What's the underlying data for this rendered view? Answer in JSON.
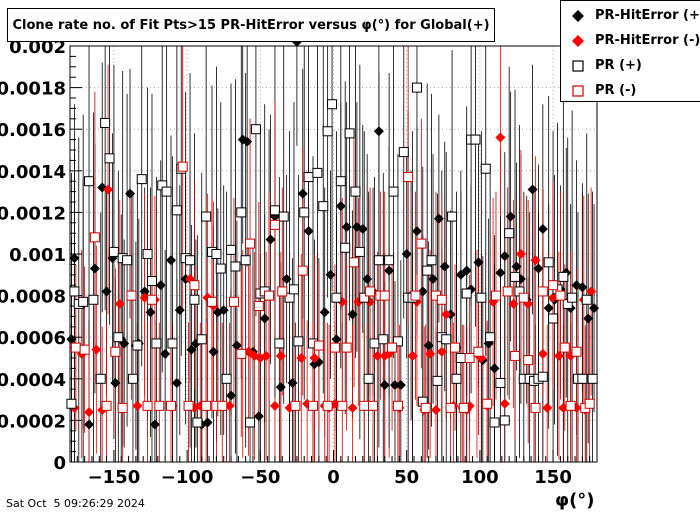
{
  "title": "Clone rate no. of Fit Pts>15 PR-HitError versus φ(°) for Global(+)",
  "footer": "Sat Oct  5 09:26:29 2024",
  "chart_data": {
    "type": "scatter",
    "title": "Clone rate no. of Fit Pts>15 PR-HitError versus φ(°) for Global(+)",
    "xlabel": "φ(°)",
    "ylabel": "",
    "xlim": [
      -180,
      180
    ],
    "ylim": [
      0,
      0.002
    ],
    "grid": true,
    "legend_position": "top-right",
    "x_ticks": [
      -150,
      -100,
      -50,
      0,
      50,
      100,
      150
    ],
    "x_tick_labels": [
      "−150",
      "−100",
      "−50",
      "0",
      "50",
      "100",
      "150"
    ],
    "y_ticks": [
      0,
      0.0002,
      0.0004,
      0.0006,
      0.0008,
      0.001,
      0.0012,
      0.0014,
      0.0016,
      0.0018,
      0.002
    ],
    "y_tick_labels": [
      "0",
      "0.0002",
      "0.0004",
      "0.0006",
      "0.0008",
      "0.001",
      "0.0012",
      "0.0014",
      "0.0016",
      "0.0018",
      "0.002"
    ],
    "series": [
      {
        "name": "PR-HitError (+)",
        "color": "#000000",
        "marker": "filled-diamond",
        "x": [
          -179,
          -177,
          -171,
          -167,
          -163,
          -158,
          -155,
          -151,
          -149,
          -145,
          -143,
          -139,
          -135,
          -133,
          -129,
          -125,
          -122,
          -118,
          -115,
          -111,
          -107,
          -105,
          -101,
          -97,
          -94,
          -90,
          -86,
          -82,
          -79,
          -75,
          -70,
          -66,
          -62,
          -59,
          -55,
          -51,
          -47,
          -43,
          -40,
          -36,
          -32,
          -28,
          -25,
          -21,
          -17,
          -13,
          -10,
          -6,
          -2,
          2,
          5,
          9,
          13,
          16,
          20,
          23,
          27,
          31,
          35,
          38,
          42,
          46,
          50,
          53,
          57,
          61,
          65,
          68,
          72,
          76,
          80,
          84,
          87,
          91,
          94,
          99,
          102,
          106,
          110,
          114,
          117,
          121,
          125,
          128,
          132,
          136,
          140,
          143,
          147,
          151,
          155,
          159,
          162,
          166,
          170,
          174,
          178
        ],
        "y": [
          0.00059,
          0.00098,
          0.00076,
          0.00018,
          0.00093,
          0.00132,
          0.00082,
          0.00098,
          0.00038,
          0.00059,
          0.00057,
          0.00129,
          0.00056,
          0.00057,
          0.00082,
          0.00072,
          0.00018,
          0.00085,
          0.00052,
          0.00097,
          0.00038,
          0.00073,
          0.00088,
          0.00054,
          0.00057,
          0.00018,
          0.00019,
          0.00053,
          0.00072,
          0.00073,
          0.00032,
          0.00056,
          0.00155,
          0.00154,
          0.00053,
          0.00022,
          0.00069,
          0.00107,
          0.00118,
          0.00036,
          0.00088,
          0.00038,
          0.00202,
          0.00129,
          0.00111,
          0.00047,
          0.00048,
          0.00072,
          0.0009,
          0.00059,
          0.00123,
          0.00113,
          0.00071,
          0.00113,
          0.00112,
          0.00088,
          0.00082,
          0.00159,
          0.00037,
          0.00092,
          0.00037,
          0.00037,
          0.001,
          0.0008,
          0.00111,
          0.00082,
          0.00056,
          0.00088,
          0.00117,
          0.00094,
          0.00071,
          0.00055,
          0.0009,
          0.00092,
          0.00083,
          0.00096,
          0.00049,
          0.00057,
          0.00045,
          0.00091,
          0.00099,
          0.00118,
          0.00094,
          0.00088,
          0.00078,
          0.00131,
          0.00093,
          0.00112,
          0.00074,
          0.00078,
          0.00083,
          0.00091,
          0.00074,
          0.00085,
          0.00084,
          0.00069,
          0.00074
        ],
        "yerr": [
          0.0008,
          0.0005,
          0.0006,
          0.0005,
          0.0006,
          0.0006,
          0.0005,
          0.0006,
          0.0005,
          0.0006,
          0.0005,
          0.0006,
          0.0005,
          0.0006,
          0.0005,
          0.0006,
          0.0005,
          0.0006,
          0.0005,
          0.0006,
          0.0005,
          0.0006,
          0.0005,
          0.0006,
          0.0005,
          0.0006,
          0.0005,
          0.0006,
          0.0005,
          0.0006,
          0.0005,
          0.0006,
          0.0005,
          0.0006,
          0.0005,
          0.0006,
          0.0005,
          0.0006,
          0.0005,
          0.0006,
          0.0005,
          0.0006,
          0.0005,
          0.0006,
          0.0005,
          0.0006,
          0.0005,
          0.0006,
          0.0005,
          0.0006,
          0.0005,
          0.0006,
          0.0005,
          0.0006,
          0.0005,
          0.0006,
          0.0005,
          0.0006,
          0.0005,
          0.0006,
          0.0005,
          0.0006,
          0.0005,
          0.0006,
          0.0005,
          0.0006,
          0.0005,
          0.0006,
          0.0005,
          0.0006,
          0.0005,
          0.0006,
          0.0005,
          0.0006,
          0.0005,
          0.0006,
          0.0005,
          0.0006,
          0.0005,
          0.0006,
          0.0005,
          0.0006,
          0.0005,
          0.0006,
          0.0005,
          0.0006,
          0.0005,
          0.0006,
          0.0005,
          0.0006,
          0.0005,
          0.0006,
          0.0005,
          0.0006,
          0.0005,
          0.0006,
          0.0005
        ]
      },
      {
        "name": "PR-HitError (-)",
        "color": "#ff0000",
        "marker": "filled-diamond",
        "x": [
          -177,
          -172,
          -167,
          -162,
          -158,
          -154,
          -146,
          -134,
          -129,
          -122,
          -110,
          -98,
          -95,
          -91,
          -86,
          -82,
          -71,
          -62,
          -58,
          -54,
          -50,
          -46,
          -40,
          -36,
          -30,
          -26,
          -22,
          -18,
          -13,
          -6,
          -3,
          1,
          6,
          13,
          17,
          25,
          30,
          35,
          38,
          45,
          54,
          57,
          62,
          66,
          70,
          74,
          77,
          82,
          88,
          91,
          93,
          98,
          101,
          105,
          109,
          114,
          117,
          123,
          128,
          133,
          138,
          143,
          146,
          150,
          154,
          157,
          162,
          166,
          171,
          172,
          176
        ],
        "y": [
          0.00026,
          0.00052,
          0.00024,
          0.00054,
          0.00025,
          0.00131,
          0.00076,
          0.00027,
          0.00079,
          0.00078,
          0.00027,
          0.00088,
          0.00026,
          0.00027,
          0.00079,
          0.00075,
          0.00027,
          0.00052,
          0.00053,
          0.00051,
          0.0005,
          0.00051,
          0.00027,
          0.00051,
          0.00026,
          0.00027,
          0.0005,
          0.00028,
          0.0005,
          0.00027,
          0.00026,
          0.00028,
          0.00077,
          0.00026,
          0.00077,
          0.00077,
          0.00051,
          0.00051,
          0.00052,
          0.00026,
          0.00051,
          0.00077,
          0.00025,
          0.00052,
          0.00025,
          0.00053,
          0.00071,
          0.00027,
          0.00026,
          0.00025,
          0.00027,
          0.00052,
          0.0005,
          0.00027,
          0.00077,
          0.00156,
          0.00028,
          0.00076,
          0.001,
          0.00076,
          0.00097,
          0.00052,
          0.00026,
          0.00079,
          0.00051,
          0.00026,
          0.00051,
          0.00026,
          0.00078,
          0.00025,
          0.00082
        ],
        "yerr": [
          0.0004,
          0.0005,
          0.0004,
          0.0005,
          0.0004,
          0.0006,
          0.0005,
          0.0004,
          0.0005,
          0.0005,
          0.0004,
          0.0005,
          0.0004,
          0.0004,
          0.0005,
          0.0005,
          0.0004,
          0.0005,
          0.0005,
          0.0005,
          0.0005,
          0.0005,
          0.0004,
          0.0005,
          0.0004,
          0.0004,
          0.0005,
          0.0004,
          0.0005,
          0.0004,
          0.0004,
          0.0004,
          0.0005,
          0.0004,
          0.0005,
          0.0005,
          0.0005,
          0.0005,
          0.0005,
          0.0004,
          0.0005,
          0.0005,
          0.0004,
          0.0005,
          0.0004,
          0.0005,
          0.0005,
          0.0004,
          0.0004,
          0.0004,
          0.0004,
          0.0005,
          0.0005,
          0.0004,
          0.0005,
          0.0006,
          0.0004,
          0.0005,
          0.0005,
          0.0005,
          0.0005,
          0.0005,
          0.0004,
          0.0005,
          0.0005,
          0.0004,
          0.0005,
          0.0004,
          0.0005,
          0.0004,
          0.0005
        ]
      },
      {
        "name": "PR (+)",
        "color": "#000000",
        "marker": "open-square",
        "x": [
          -179,
          -177,
          -174,
          -171,
          -167,
          -164,
          -159,
          -156,
          -153,
          -150,
          -147,
          -144,
          -141,
          -137,
          -134,
          -131,
          -127,
          -124,
          -121,
          -117,
          -114,
          -110,
          -107,
          -104,
          -101,
          -98,
          -95,
          -93,
          -90,
          -87,
          -83,
          -80,
          -77,
          -73,
          -70,
          -67,
          -63,
          -60,
          -57,
          -53,
          -50,
          -47,
          -44,
          -40,
          -37,
          -34,
          -30,
          -27,
          -24,
          -20,
          -17,
          -14,
          -11,
          -7,
          -4,
          -1,
          2,
          5,
          8,
          11,
          15,
          18,
          21,
          24,
          28,
          31,
          34,
          38,
          41,
          44,
          48,
          51,
          54,
          57,
          61,
          64,
          67,
          71,
          74,
          77,
          81,
          84,
          87,
          91,
          94,
          97,
          101,
          104,
          107,
          110,
          114,
          117,
          120,
          124,
          127,
          130,
          134,
          137,
          140,
          143,
          147,
          150,
          153,
          157,
          160,
          163,
          167,
          170,
          173,
          177
        ],
        "y": [
          0.00028,
          0.00082,
          0.00076,
          0.00077,
          0.00135,
          0.00078,
          0.0004,
          0.00163,
          0.00146,
          0.00101,
          0.0006,
          0.00098,
          0.00097,
          0.0004,
          0.00056,
          0.00136,
          0.001,
          0.00087,
          0.00057,
          0.00133,
          0.0013,
          0.00057,
          0.00121,
          0.00141,
          0.00098,
          0.00097,
          0.00078,
          0.00019,
          0.00059,
          0.00118,
          0.00101,
          0.001,
          0.00093,
          0.0004,
          0.00102,
          0.00094,
          0.0012,
          0.00097,
          0.00019,
          0.0016,
          0.00081,
          0.00082,
          0.0008,
          0.00121,
          0.00057,
          0.00118,
          0.00079,
          0.00083,
          0.00058,
          0.0012,
          0.00137,
          0.00057,
          0.00139,
          0.00123,
          0.00159,
          0.00172,
          0.00079,
          0.00135,
          0.00103,
          0.00158,
          0.0013,
          0.00101,
          0.00079,
          0.0004,
          0.00057,
          0.00097,
          0.00059,
          0.00097,
          0.0013,
          0.00058,
          0.00149,
          0.00079,
          0.00079,
          0.0018,
          0.00029,
          0.00092,
          0.00097,
          0.00039,
          0.0006,
          0.00059,
          0.00118,
          0.0004,
          0.0005,
          0.00081,
          0.00155,
          0.00155,
          0.00079,
          0.00141,
          0.0006,
          0.00019,
          0.00038,
          0.0002,
          0.0011,
          0.00089,
          0.00082,
          0.0004,
          0.0004,
          0.00039,
          0.0004,
          0.00041,
          0.00096,
          0.00069,
          0.00083,
          0.00089,
          0.00076,
          0.00079,
          0.0004,
          0.0004,
          0.00078,
          0.0004
        ],
        "yerr": [
          0.0008,
          0.0009,
          0.0008,
          0.0009,
          0.0008,
          0.0009,
          0.0008,
          0.0009,
          0.0008,
          0.0009,
          0.0008,
          0.0009,
          0.0008,
          0.0009,
          0.0008,
          0.0009,
          0.0008,
          0.0009,
          0.0008,
          0.0009,
          0.0008,
          0.0009,
          0.0008,
          0.0009,
          0.0008,
          0.0009,
          0.0008,
          0.0009,
          0.0008,
          0.0009,
          0.0008,
          0.0009,
          0.0008,
          0.0009,
          0.0008,
          0.0009,
          0.0008,
          0.0009,
          0.0008,
          0.0009,
          0.0008,
          0.0009,
          0.0008,
          0.0009,
          0.0008,
          0.0009,
          0.0008,
          0.0009,
          0.0008,
          0.0009,
          0.0008,
          0.0009,
          0.0008,
          0.0009,
          0.0008,
          0.0009,
          0.0008,
          0.0009,
          0.0008,
          0.0009,
          0.0008,
          0.0009,
          0.0008,
          0.0009,
          0.0008,
          0.0009,
          0.0008,
          0.0009,
          0.0008,
          0.0009,
          0.0008,
          0.0009,
          0.0008,
          0.0009,
          0.0008,
          0.0009,
          0.0008,
          0.0009,
          0.0008,
          0.0009,
          0.0008,
          0.0009,
          0.0008,
          0.0009,
          0.0008,
          0.0009,
          0.0008,
          0.0009,
          0.0008,
          0.0009,
          0.0008,
          0.0009,
          0.0008,
          0.0009,
          0.0008,
          0.0009,
          0.0008,
          0.0009,
          0.0008,
          0.0009,
          0.0008,
          0.0009,
          0.0008,
          0.0009,
          0.0008,
          0.0009,
          0.0008,
          0.0009,
          0.0008,
          0.0009
        ]
      },
      {
        "name": "PR (-)",
        "color": "#cc0000",
        "marker": "open-square",
        "x": [
          -176,
          -170,
          -163,
          -155,
          -149,
          -144,
          -138,
          -127,
          -124,
          -119,
          -111,
          -103,
          -99,
          -95,
          -87,
          -83,
          -80,
          -76,
          -68,
          -63,
          -57,
          -51,
          -44,
          -40,
          -35,
          -26,
          -21,
          -14,
          -10,
          -4,
          1,
          6,
          9,
          14,
          21,
          25,
          27,
          32,
          35,
          40,
          44,
          51,
          56,
          60,
          63,
          70,
          74,
          80,
          83,
          89,
          93,
          99,
          105,
          111,
          119,
          124,
          130,
          133,
          138,
          143,
          150,
          155,
          158,
          162,
          166,
          172,
          175
        ],
        "y": [
          0.00055,
          0.00054,
          0.00108,
          0.00027,
          0.00053,
          0.00026,
          0.0008,
          0.00027,
          0.00078,
          0.00027,
          0.00027,
          0.00142,
          0.00027,
          0.00085,
          0.00027,
          0.00077,
          0.00027,
          0.00027,
          0.00077,
          0.00052,
          0.00105,
          0.00075,
          0.0008,
          0.00114,
          0.00082,
          0.00027,
          0.00092,
          0.00027,
          0.00056,
          0.00027,
          0.00055,
          0.00027,
          0.00055,
          0.00096,
          0.00027,
          0.00082,
          0.00027,
          0.0008,
          0.0008,
          0.00055,
          0.00027,
          0.00137,
          0.0008,
          0.00105,
          0.00026,
          0.0008,
          0.00078,
          0.00026,
          0.00055,
          0.00026,
          0.0005,
          0.00053,
          0.00028,
          0.0008,
          0.00082,
          0.00051,
          0.00079,
          0.00049,
          0.00026,
          0.00082,
          0.00085,
          0.0008,
          0.00055,
          0.00027,
          0.00053,
          0.00026,
          0.00028
        ],
        "yerr": [
          0.0004,
          0.0004,
          0.0007,
          0.0004,
          0.0004,
          0.0004,
          0.0005,
          0.0004,
          0.0005,
          0.0004,
          0.0004,
          0.0007,
          0.0004,
          0.0005,
          0.0004,
          0.0005,
          0.0004,
          0.0004,
          0.0005,
          0.0004,
          0.0006,
          0.0005,
          0.0005,
          0.0006,
          0.0005,
          0.0004,
          0.0006,
          0.0004,
          0.0004,
          0.0004,
          0.0004,
          0.0004,
          0.0004,
          0.0006,
          0.0004,
          0.0005,
          0.0004,
          0.0005,
          0.0005,
          0.0004,
          0.0004,
          0.0007,
          0.0005,
          0.0006,
          0.0004,
          0.0005,
          0.0005,
          0.0004,
          0.0004,
          0.0004,
          0.0004,
          0.0004,
          0.0004,
          0.0005,
          0.0005,
          0.0004,
          0.0005,
          0.0004,
          0.0004,
          0.0005,
          0.0005,
          0.0005,
          0.0004,
          0.0004,
          0.0004,
          0.0004,
          0.0004
        ]
      }
    ]
  }
}
